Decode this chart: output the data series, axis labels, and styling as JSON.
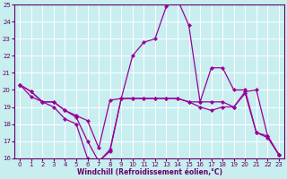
{
  "xlabel": "Windchill (Refroidissement éolien,°C)",
  "background_color": "#c8eef0",
  "grid_color": "#ffffff",
  "line_color": "#990099",
  "x": [
    0,
    1,
    2,
    3,
    4,
    5,
    6,
    7,
    8,
    9,
    10,
    11,
    12,
    13,
    14,
    15,
    16,
    17,
    18,
    19,
    20,
    21,
    22,
    23
  ],
  "series": [
    [
      20.3,
      19.9,
      19.3,
      19.3,
      18.8,
      18.5,
      18.2,
      16.6,
      19.4,
      19.5,
      19.5,
      19.5,
      19.5,
      19.5,
      19.5,
      19.3,
      19.3,
      19.3,
      19.3,
      19.0,
      19.9,
      20.0,
      17.3,
      16.2
    ],
    [
      20.3,
      19.9,
      19.3,
      19.3,
      18.8,
      18.4,
      17.0,
      15.8,
      16.5,
      19.5,
      22.0,
      22.8,
      23.0,
      24.9,
      25.3,
      23.8,
      19.3,
      21.3,
      21.3,
      20.0,
      20.0,
      17.5,
      17.2,
      16.2
    ],
    [
      20.3,
      19.6,
      19.3,
      19.0,
      18.3,
      18.0,
      16.0,
      15.8,
      16.4,
      19.5,
      19.5,
      19.5,
      19.5,
      19.5,
      19.5,
      19.3,
      19.0,
      18.8,
      19.0,
      19.0,
      19.8,
      17.5,
      17.3,
      16.2
    ]
  ],
  "ylim": [
    16,
    25
  ],
  "yticks": [
    16,
    17,
    18,
    19,
    20,
    21,
    22,
    23,
    24,
    25
  ],
  "xlim": [
    -0.5,
    23.5
  ],
  "xticks": [
    0,
    1,
    2,
    3,
    4,
    5,
    6,
    7,
    8,
    9,
    10,
    11,
    12,
    13,
    14,
    15,
    16,
    17,
    18,
    19,
    20,
    21,
    22,
    23
  ],
  "xlabel_fontsize": 5.5,
  "tick_fontsize": 5.0,
  "linewidth": 0.9,
  "markersize": 2.2
}
